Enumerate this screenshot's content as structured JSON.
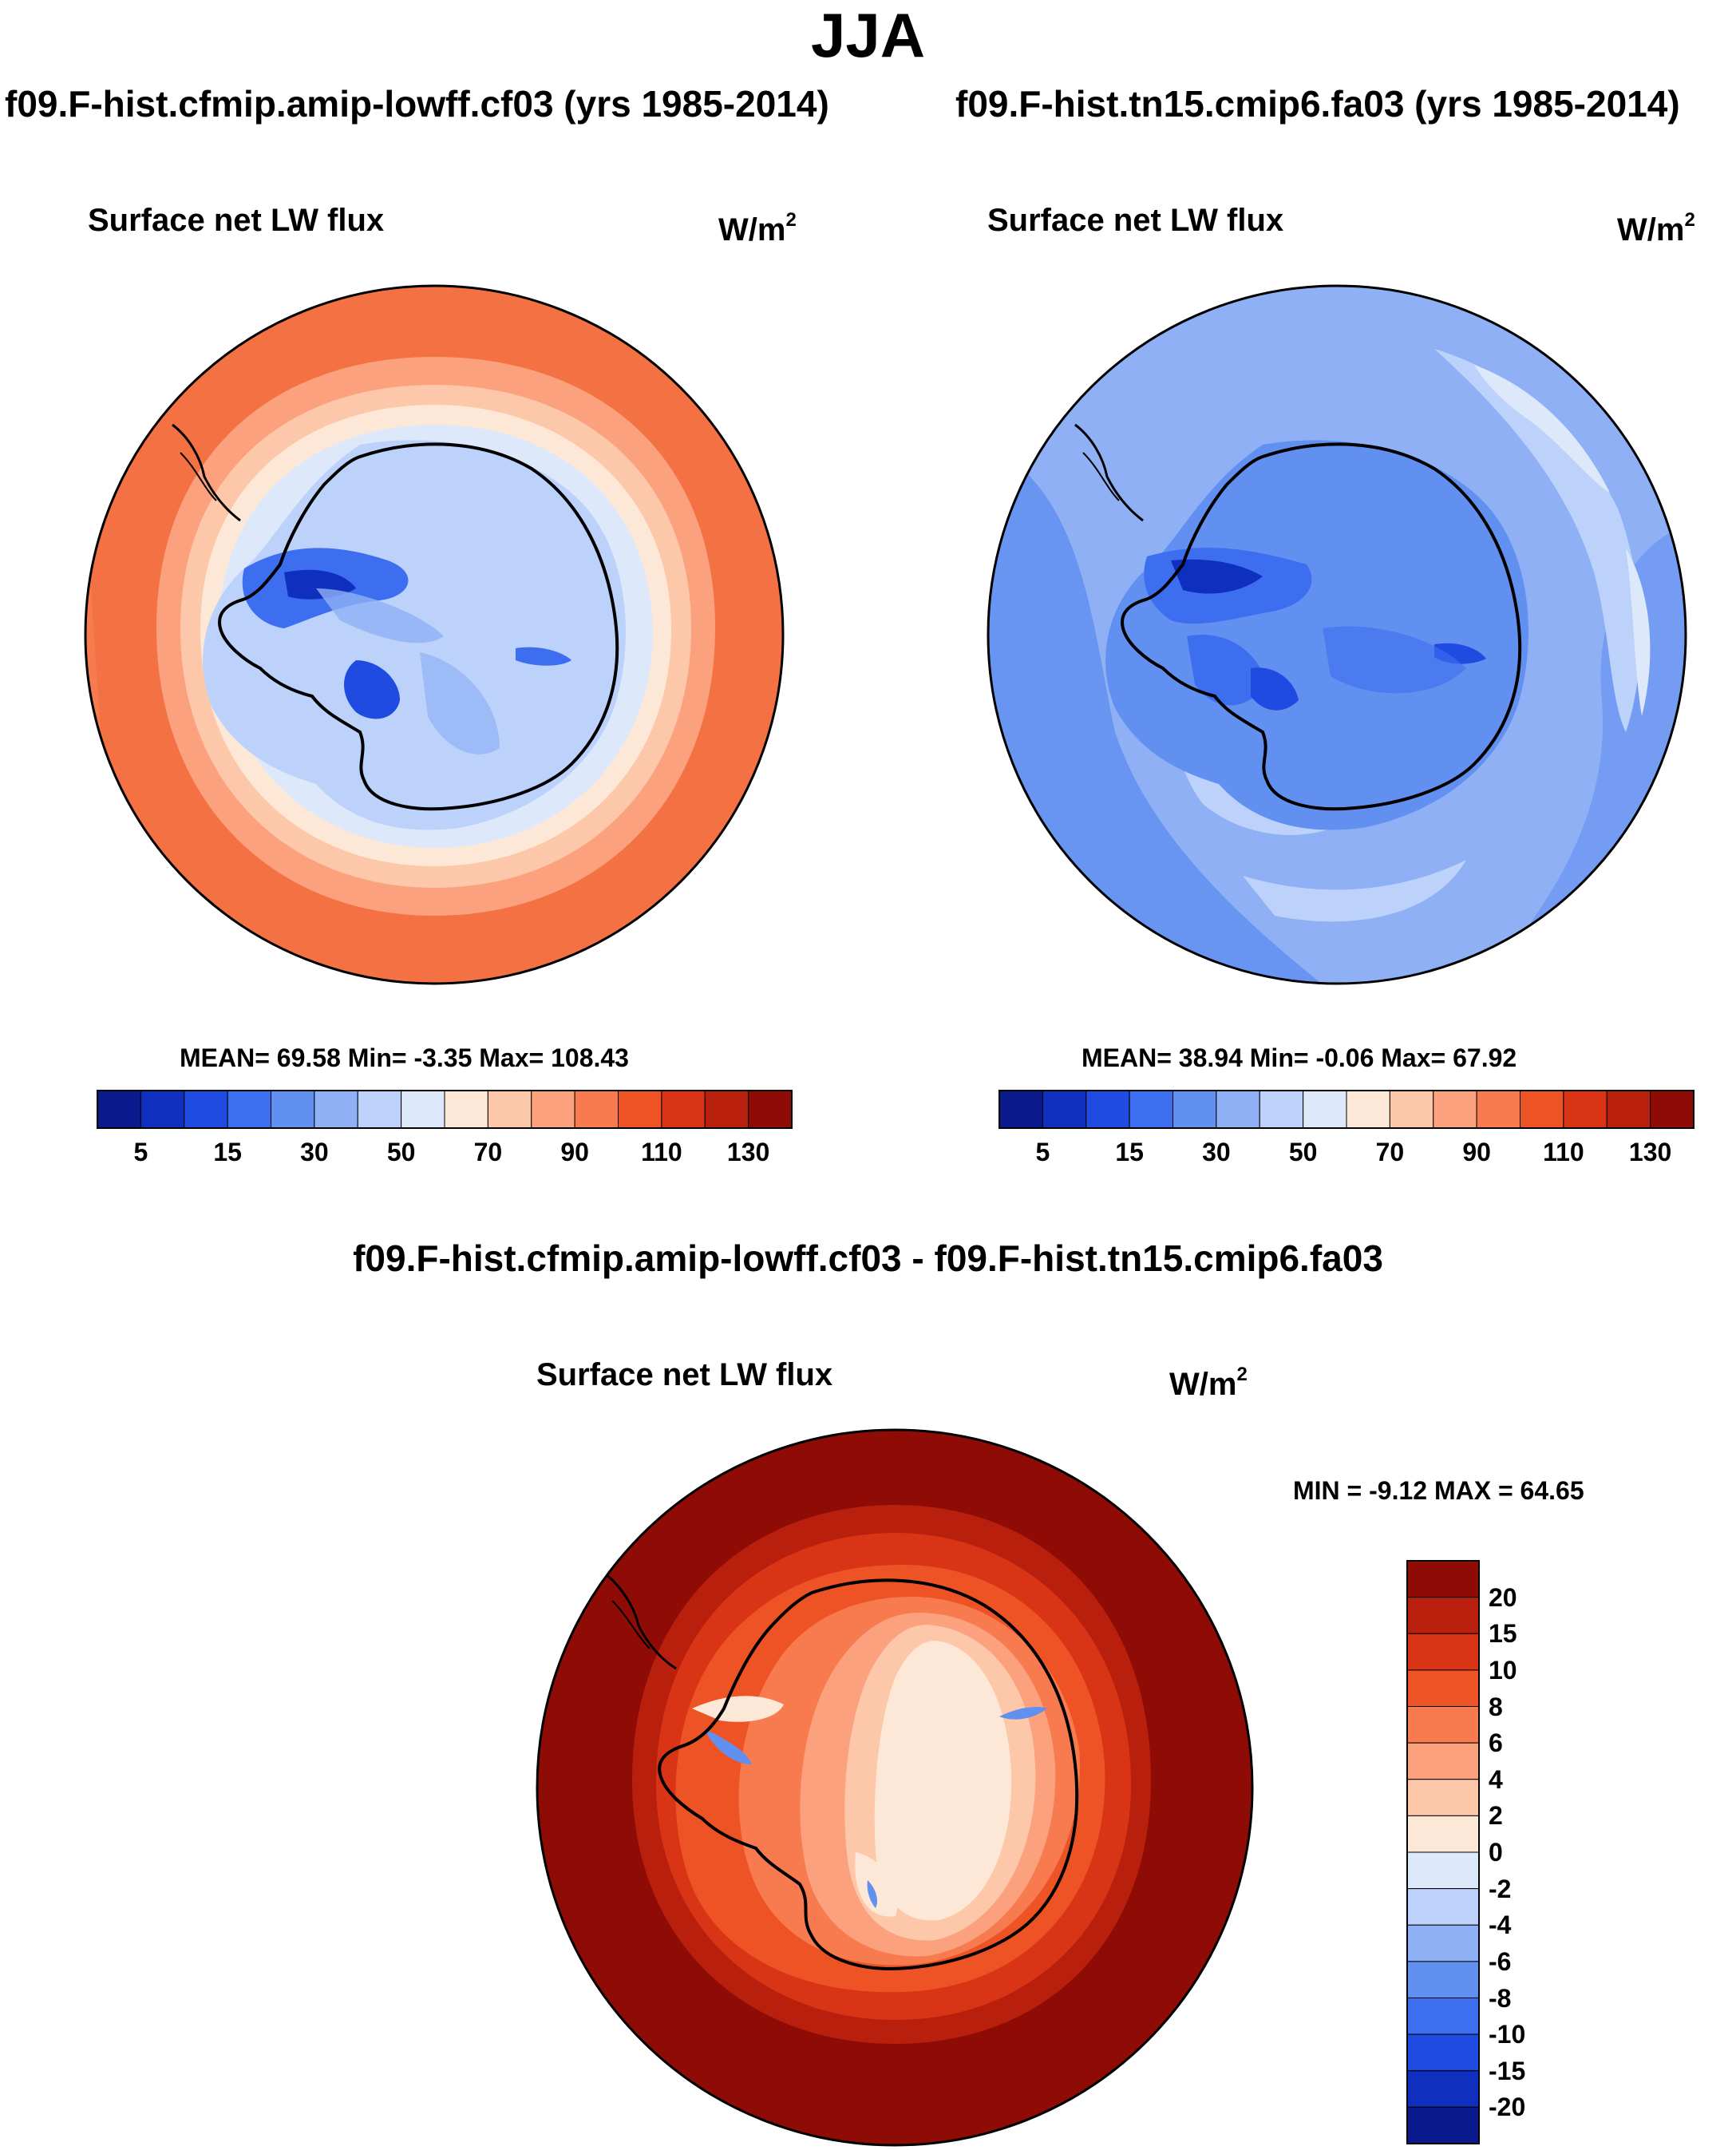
{
  "title": "JJA",
  "panels": [
    {
      "case": "f09.F-hist.cfmip.amip-lowff.cf03 (yrs 1985-2014)",
      "variable": "Surface net LW flux",
      "units": "W/m",
      "units_exp": "2",
      "stats": "MEAN=  69.58  Min=  -3.35  Max= 108.43",
      "map_description": "warm orange ocean surrounding bluish Antarctica"
    },
    {
      "case": "f09.F-hist.tn15.cmip6.fa03 (yrs 1985-2014)",
      "variable": "Surface net LW flux",
      "units": "W/m",
      "units_exp": "2",
      "stats": "MEAN=  38.94  Min=  -0.06  Max=  67.92",
      "map_description": "mostly blue field over ocean and Antarctica"
    }
  ],
  "shared_colorbar": {
    "colors": [
      "#0a1a8c",
      "#0f2fbf",
      "#1f4be0",
      "#3d6ef0",
      "#6190f0",
      "#8fb0f5",
      "#bcd2fa",
      "#dde9fb",
      "#fde8d8",
      "#fdc7a9",
      "#fca17e",
      "#f77b4f",
      "#ee5326",
      "#d93415",
      "#b81f0d",
      "#8e0c05"
    ],
    "tick_labels": [
      "5",
      "15",
      "30",
      "50",
      "70",
      "90",
      "110",
      "130"
    ]
  },
  "difference": {
    "title": "f09.F-hist.cfmip.amip-lowff.cf03 - f09.F-hist.tn15.cmip6.fa03",
    "variable": "Surface net LW flux",
    "units": "W/m",
    "units_exp": "2",
    "stats": "MIN =  -9.12 MAX =  64.65",
    "colorbar": {
      "colors_top_to_bottom": [
        "#8e0c05",
        "#b81f0d",
        "#d93415",
        "#ee5326",
        "#f77b4f",
        "#fca17e",
        "#fdc7a9",
        "#fde8d8",
        "#dde9fb",
        "#bcd2fa",
        "#8fb0f5",
        "#6190f0",
        "#3d6ef0",
        "#1f4be0",
        "#0f2fbf",
        "#0a1a8c"
      ],
      "tick_labels": [
        "20",
        "15",
        "10",
        "8",
        "6",
        "4",
        "2",
        "0",
        "-2",
        "-4",
        "-6",
        "-8",
        "-10",
        "-15",
        "-20"
      ]
    }
  }
}
